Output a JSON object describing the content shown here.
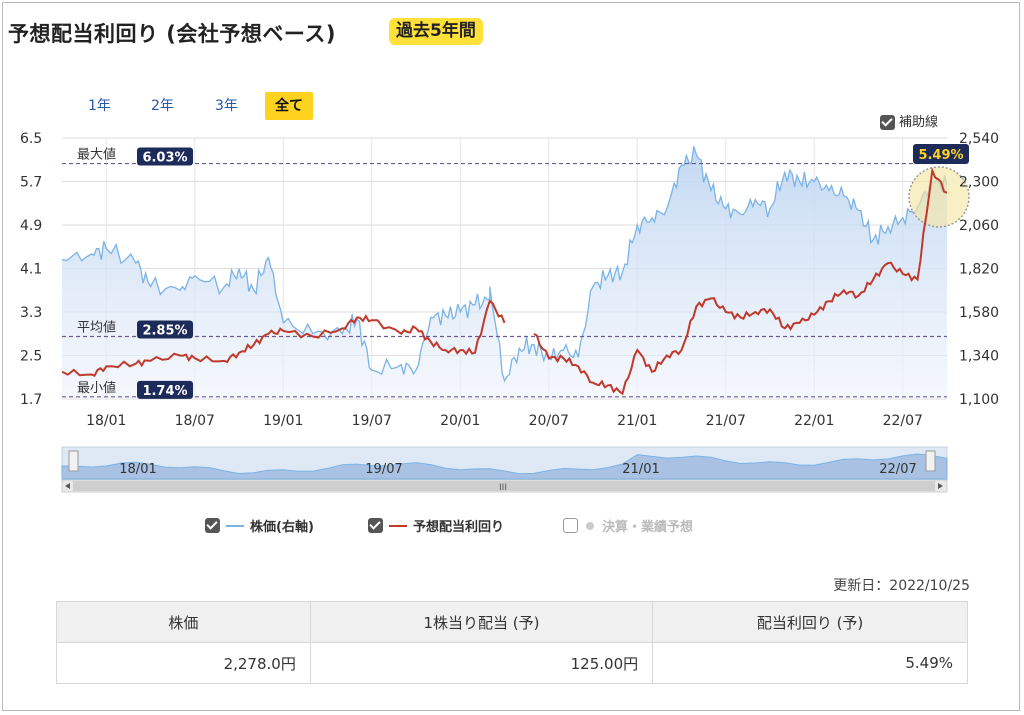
{
  "header": {
    "title": "予想配当利回り (会社予想ベース)",
    "badge": "過去5年間"
  },
  "range_buttons": [
    {
      "label": "1年",
      "active": false
    },
    {
      "label": "2年",
      "active": false
    },
    {
      "label": "3年",
      "active": false
    },
    {
      "label": "全て",
      "active": true
    }
  ],
  "aux_lines": {
    "label": "補助線",
    "checked": true
  },
  "chart_data": {
    "type": "line",
    "y_left": {
      "ticks": [
        "6.5",
        "5.7",
        "4.9",
        "4.1",
        "3.3",
        "2.5",
        "1.7"
      ],
      "ylim": [
        1.7,
        6.5
      ]
    },
    "y_right": {
      "ticks": [
        "2,540",
        "2,300",
        "2,060",
        "1,820",
        "1,580",
        "1,340",
        "1,100"
      ],
      "ylim": [
        1100,
        2540
      ]
    },
    "x_ticks": [
      "18/01",
      "18/07",
      "19/01",
      "19/07",
      "20/01",
      "20/07",
      "21/01",
      "21/07",
      "22/01",
      "22/07"
    ],
    "reference_lines": [
      {
        "label": "最大値",
        "value_label": "6.03%",
        "value": 6.03
      },
      {
        "label": "平均値",
        "value_label": "2.85%",
        "value": 2.85
      },
      {
        "label": "最小値",
        "value_label": "1.74%",
        "value": 1.74
      }
    ],
    "current_value_label": "5.49%",
    "series": [
      {
        "name": "株価(右軸)",
        "axis": "right",
        "color": "#7ab3e6",
        "x": [
          "17/10",
          "17/12",
          "18/01",
          "18/03",
          "18/04",
          "18/06",
          "18/07",
          "18/09",
          "18/10",
          "18/11",
          "18/12",
          "19/01",
          "19/03",
          "19/05",
          "19/06",
          "19/07",
          "19/09",
          "19/10",
          "19/11",
          "19/12",
          "20/01",
          "20/02",
          "20/03",
          "20/03",
          "20/04",
          "20/05",
          "20/06",
          "20/07",
          "20/08",
          "20/09",
          "20/10",
          "20/11",
          "20/12",
          "21/01",
          "21/02",
          "21/03",
          "21/04",
          "21/05",
          "21/06",
          "21/07",
          "21/08",
          "21/09",
          "21/10",
          "21/11",
          "21/12",
          "22/01",
          "22/02",
          "22/03",
          "22/04",
          "22/05",
          "22/06",
          "22/07",
          "22/08",
          "22/09",
          "22/10"
        ],
        "values": [
          1870,
          1900,
          1930,
          1850,
          1720,
          1700,
          1780,
          1720,
          1820,
          1700,
          1880,
          1520,
          1460,
          1460,
          1540,
          1260,
          1290,
          1260,
          1550,
          1560,
          1580,
          1620,
          1650,
          1720,
          1200,
          1380,
          1400,
          1320,
          1370,
          1330,
          1720,
          1780,
          1800,
          2060,
          2100,
          2150,
          2390,
          2450,
          2250,
          2150,
          2120,
          2200,
          2150,
          2350,
          2300,
          2300,
          2250,
          2220,
          2140,
          1980,
          2050,
          2100,
          2160,
          2300,
          2278
        ]
      },
      {
        "name": "予想配当利回り",
        "axis": "left",
        "color": "#c0392b",
        "x": [
          "17/10",
          "17/12",
          "18/01",
          "18/03",
          "18/04",
          "18/06",
          "18/07",
          "18/09",
          "18/10",
          "18/11",
          "18/12",
          "19/01",
          "19/03",
          "19/05",
          "19/06",
          "19/07",
          "19/09",
          "19/10",
          "19/11",
          "19/12",
          "20/01",
          "20/02",
          "20/03",
          "20/04",
          "20/05",
          "20/06",
          "20/07",
          "20/08",
          "20/09",
          "20/10",
          "20/11",
          "20/12",
          "21/01",
          "21/02",
          "21/03",
          "21/04",
          "21/05",
          "21/06",
          "21/07",
          "21/08",
          "21/09",
          "21/10",
          "21/11",
          "21/12",
          "22/01",
          "22/02",
          "22/03",
          "22/04",
          "22/05",
          "22/06",
          "22/07",
          "22/08",
          "22/09",
          "22/10"
        ],
        "values": [
          2.2,
          2.15,
          2.3,
          2.35,
          2.4,
          2.5,
          2.45,
          2.4,
          2.55,
          2.7,
          2.9,
          2.95,
          2.85,
          3.0,
          3.2,
          3.15,
          2.9,
          3.0,
          2.75,
          2.6,
          2.6,
          2.55,
          3.5,
          3.1,
          null,
          2.9,
          2.45,
          2.45,
          2.3,
          2.0,
          1.95,
          1.8,
          2.6,
          2.2,
          2.5,
          2.6,
          3.4,
          3.55,
          3.3,
          3.2,
          3.3,
          3.35,
          3.0,
          3.1,
          3.25,
          3.5,
          3.7,
          3.6,
          3.9,
          4.2,
          4.0,
          3.9,
          5.9,
          5.49
        ]
      }
    ]
  },
  "navigator": {
    "labels": [
      "18/01",
      "19/07",
      "21/01",
      "22/07"
    ],
    "scroll_grip": "III"
  },
  "legend": [
    {
      "label": "株価(右軸)",
      "checked": true,
      "color": "#7ab3e6"
    },
    {
      "label": "予想配当利回り",
      "checked": true,
      "color": "#c0392b"
    },
    {
      "label": "決算・業績予想",
      "checked": false,
      "color": "#cccccc"
    }
  ],
  "updated": "更新日：2022/10/25",
  "info_table": {
    "headers": [
      "株価",
      "1株当り配当 (予)",
      "配当利回り (予)"
    ],
    "values": [
      "2,278.0円",
      "125.00円",
      "5.49%"
    ]
  }
}
